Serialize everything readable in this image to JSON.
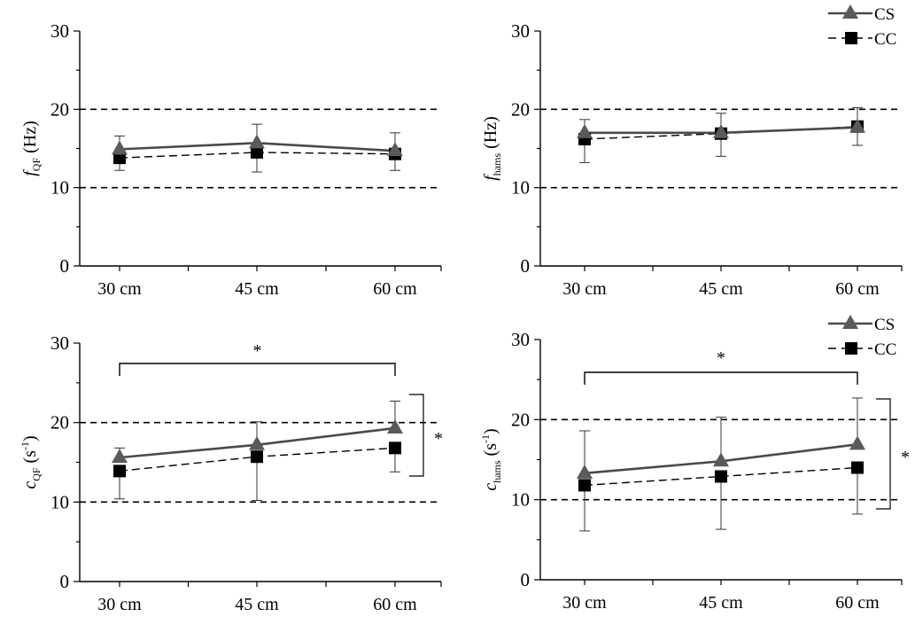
{
  "chart_data": [
    {
      "type": "line",
      "panel": "top-left",
      "ylabel": {
        "main": "f",
        "sub": "QF",
        "unit": " (Hz)"
      },
      "categories": [
        "30 cm",
        "45 cm",
        "60 cm"
      ],
      "yticks": [
        "0",
        "10",
        "20",
        "30"
      ],
      "ylim": [
        0,
        30
      ],
      "reference_lines": [
        10,
        20
      ],
      "series": [
        {
          "name": "CS",
          "values": [
            14.9,
            15.7,
            14.7
          ],
          "err_upper": [
            16.6,
            18.1,
            17.0
          ],
          "err_lower": [
            null,
            null,
            null
          ]
        },
        {
          "name": "CC",
          "values": [
            13.8,
            14.5,
            14.3
          ],
          "err_upper": [
            null,
            null,
            null
          ],
          "err_lower": [
            12.2,
            12.0,
            12.2
          ]
        }
      ],
      "legend": false,
      "significance": []
    },
    {
      "type": "line",
      "panel": "top-right",
      "ylabel": {
        "main": "f",
        "sub": "hams",
        "unit": " (Hz)"
      },
      "categories": [
        "30 cm",
        "45 cm",
        "60 cm"
      ],
      "yticks": [
        "0",
        "10",
        "20",
        "30"
      ],
      "ylim": [
        0,
        30
      ],
      "reference_lines": [
        10,
        20
      ],
      "series": [
        {
          "name": "CS",
          "values": [
            17.0,
            17.0,
            17.7
          ],
          "err_upper": [
            18.7,
            19.5,
            20.2
          ],
          "err_lower": [
            null,
            null,
            null
          ]
        },
        {
          "name": "CC",
          "values": [
            16.2,
            16.9,
            17.8
          ],
          "err_upper": [
            null,
            null,
            null
          ],
          "err_lower": [
            13.2,
            14.0,
            15.4
          ]
        }
      ],
      "legend": true,
      "significance": []
    },
    {
      "type": "line",
      "panel": "bottom-left",
      "ylabel": {
        "main": "c",
        "sub": "QF",
        "unit": " (s",
        "sup": "-1",
        "unit_end": ")"
      },
      "categories": [
        "30 cm",
        "45 cm",
        "60 cm"
      ],
      "yticks": [
        "0",
        "10",
        "20",
        "30"
      ],
      "ylim": [
        0,
        30
      ],
      "reference_lines": [
        10,
        20
      ],
      "series": [
        {
          "name": "CS",
          "values": [
            15.6,
            17.2,
            19.3
          ],
          "err_upper": [
            16.8,
            20.1,
            22.7
          ],
          "err_lower": [
            null,
            null,
            null
          ]
        },
        {
          "name": "CC",
          "values": [
            13.9,
            15.7,
            16.8
          ],
          "err_upper": [
            null,
            null,
            null
          ],
          "err_lower": [
            10.4,
            10.2,
            13.8
          ]
        }
      ],
      "legend": false,
      "significance": [
        "*",
        "*"
      ]
    },
    {
      "type": "line",
      "panel": "bottom-right",
      "ylabel": {
        "main": "c",
        "sub": "hams",
        "unit": " (s",
        "sup": "-1",
        "unit_end": ")"
      },
      "categories": [
        "30 cm",
        "45 cm",
        "60 cm"
      ],
      "yticks": [
        "0",
        "10",
        "20",
        "30"
      ],
      "ylim": [
        0,
        30
      ],
      "reference_lines": [
        10,
        20
      ],
      "series": [
        {
          "name": "CS",
          "values": [
            13.3,
            14.8,
            16.9
          ],
          "err_upper": [
            18.6,
            20.3,
            22.7
          ],
          "err_lower": [
            null,
            null,
            null
          ]
        },
        {
          "name": "CC",
          "values": [
            11.8,
            12.9,
            14.0
          ],
          "err_upper": [
            null,
            null,
            null
          ],
          "err_lower": [
            6.1,
            6.3,
            8.2
          ]
        }
      ],
      "legend": true,
      "significance": [
        "*",
        "*"
      ]
    }
  ]
}
